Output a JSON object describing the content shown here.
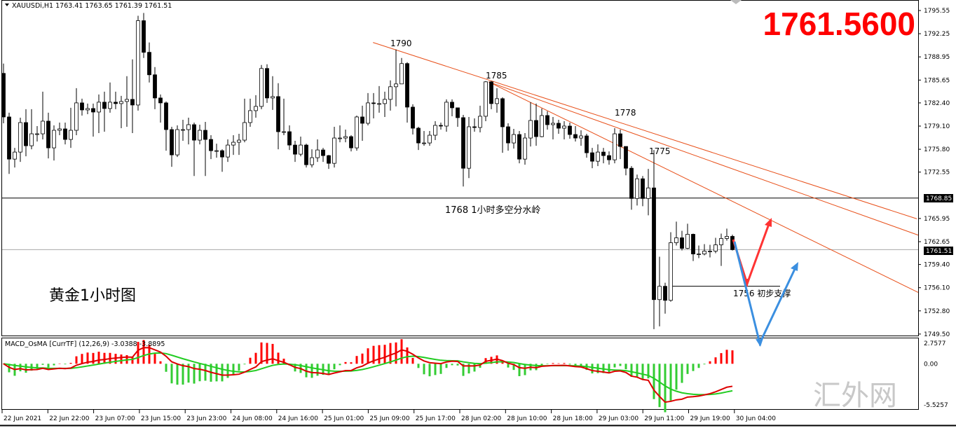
{
  "header": {
    "symbol_line": "XAUUSDi,H1  1763.41 1763.65 1761.39 1761.51",
    "menu_icon": "triangle-down-icon"
  },
  "big_price": "1761.5600",
  "chart_title": "黄金1小时图",
  "watermark": "汇外网",
  "colors": {
    "bull": "#ffffff",
    "bear": "#000000",
    "trendline": "#e8501a",
    "macd_pos": "#ff0000",
    "macd_neg": "#33cc33",
    "macd_line": "#dd0000",
    "signal_line": "#22cc22",
    "arrow_up": "#ff3333",
    "arrow_blue": "#3b8fe0",
    "big_price": "#ff0000"
  },
  "annotations": {
    "label_1790": "1790",
    "label_1785": "1785",
    "label_1778": "1778",
    "label_1775": "1775",
    "pivot_label": "1768  1小时多空分水岭",
    "support_label": "1756  初步支撑"
  },
  "price_tags": {
    "level": "1768.85",
    "last": "1761.51"
  },
  "macd": {
    "header": "MACD_OsMA [CurrTF] (12,26,9) -3.0388 -3.8895",
    "ticks": [
      "2.7577",
      "0.00",
      "-5.5257"
    ],
    "ylim": [
      -5.5257,
      2.7577
    ]
  },
  "chart_data": {
    "type": "candlestick",
    "symbol": "XAUUSDi",
    "timeframe": "H1",
    "ylim": [
      1749.5,
      1795.55
    ],
    "y_ticks": [
      "1795.55",
      "1792.25",
      "1788.95",
      "1785.65",
      "1782.40",
      "1779.10",
      "1775.80",
      "1772.55",
      "1765.95",
      "1762.65",
      "1759.40",
      "1756.10",
      "1752.80",
      "1749.50"
    ],
    "x_ticks": [
      "22 Jun 2021",
      "22 Jun 22:00",
      "23 Jun 07:00",
      "23 Jun 15:00",
      "23 Jun 23:00",
      "24 Jun 08:00",
      "24 Jun 16:00",
      "25 Jun 01:00",
      "25 Jun 09:00",
      "25 Jun 17:00",
      "28 Jun 02:00",
      "28 Jun 10:00",
      "28 Jun 18:00",
      "29 Jun 03:00",
      "29 Jun 11:00",
      "29 Jun 19:00",
      "30 Jun 04:00"
    ],
    "first_open": 1786.6,
    "close": [
      1780.4,
      1774.4,
      1775.4,
      1779.6,
      1776.3,
      1778.0,
      1778.0,
      1779.8,
      1776.0,
      1778.5,
      1778.7,
      1777.2,
      1778.5,
      1782.4,
      1781.4,
      1781.6,
      1781.1,
      1782.5,
      1781.6,
      1782.5,
      1782.3,
      1782.6,
      1782.9,
      1782.1,
      1794.1,
      1789.6,
      1786.4,
      1783.1,
      1782.4,
      1778.6,
      1775.0,
      1778.6,
      1778.6,
      1779.3,
      1777.1,
      1778.5,
      1777.2,
      1775.6,
      1775.6,
      1774.7,
      1776.4,
      1776.8,
      1777.1,
      1779.6,
      1781.3,
      1781.9,
      1787.3,
      1783.1,
      1783.3,
      1778.3,
      1778.3,
      1776.4,
      1775.1,
      1776.4,
      1773.6,
      1774.6,
      1775.7,
      1774.9,
      1773.8,
      1777.4,
      1777.4,
      1777.6,
      1776.0,
      1780.4,
      1779.5,
      1782.4,
      1782.3,
      1782.3,
      1782.9,
      1784.7,
      1785.1,
      1788.0,
      1781.8,
      1778.8,
      1776.7,
      1776.7,
      1777.8,
      1779.2,
      1779.1,
      1782.5,
      1781.7,
      1780.3,
      1773.1,
      1779.0,
      1778.9,
      1780.5,
      1785.4,
      1782.3,
      1783.0,
      1779.0,
      1776.7,
      1777.9,
      1774.4,
      1777.4,
      1779.9,
      1777.6,
      1780.6,
      1779.3,
      1779.5,
      1778.8,
      1779.1,
      1777.9,
      1777.4,
      1777.7,
      1775.3,
      1774.1,
      1775.4,
      1774.9,
      1774.3,
      1778.0,
      1776.2,
      1773.1,
      1768.8,
      1771.6,
      1768.8,
      1770.3,
      1754.4,
      1756.3,
      1754.3,
      1762.5,
      1763.2,
      1761.7,
      1763.7,
      1760.9,
      1760.9,
      1761.3,
      1761.3,
      1762.2,
      1763.1,
      1763.4,
      1761.51
    ],
    "high": [
      1788.0,
      1781.0,
      1776.0,
      1780.3,
      1781.5,
      1781.5,
      1779.1,
      1784.0,
      1781.0,
      1779.2,
      1779.6,
      1779.6,
      1781.7,
      1784.5,
      1783.0,
      1782.3,
      1782.3,
      1783.6,
      1784.0,
      1785.3,
      1784.0,
      1783.4,
      1786.2,
      1788.6,
      1794.8,
      1795.2,
      1791.0,
      1787.5,
      1783.6,
      1782.6,
      1779.0,
      1779.2,
      1780.0,
      1780.3,
      1779.6,
      1779.3,
      1779.7,
      1777.8,
      1776.6,
      1775.8,
      1777.2,
      1777.8,
      1778.0,
      1783.0,
      1783.0,
      1783.5,
      1787.8,
      1787.9,
      1786.2,
      1785.2,
      1783.0,
      1779.2,
      1777.0,
      1777.6,
      1776.6,
      1775.8,
      1777.2,
      1776.0,
      1775.0,
      1779.0,
      1779.2,
      1778.6,
      1777.8,
      1780.6,
      1782.0,
      1783.8,
      1783.8,
      1784.8,
      1784.0,
      1785.6,
      1790.0,
      1788.8,
      1788.2,
      1782.2,
      1779.0,
      1778.4,
      1778.4,
      1779.8,
      1779.6,
      1782.9,
      1782.9,
      1781.6,
      1780.7,
      1780.4,
      1780.2,
      1782.0,
      1785.5,
      1785.5,
      1784.5,
      1783.2,
      1779.5,
      1778.7,
      1778.4,
      1778.1,
      1782.5,
      1782.3,
      1781.6,
      1781.2,
      1780.4,
      1780.0,
      1779.8,
      1779.6,
      1779.1,
      1778.5,
      1778.0,
      1776.0,
      1776.5,
      1776.0,
      1775.5,
      1778.8,
      1778.6,
      1774.5,
      1773.4,
      1772.2,
      1772.0,
      1773.0,
      1775.7,
      1760.5,
      1756.8,
      1764.0,
      1765.5,
      1764.2,
      1765.2,
      1763.8,
      1762.1,
      1762.3,
      1762.2,
      1763.2,
      1763.8,
      1764.5,
      1763.65
    ],
    "low": [
      1779.5,
      1772.3,
      1773.2,
      1774.0,
      1774.8,
      1775.8,
      1776.9,
      1777.2,
      1774.5,
      1774.2,
      1777.8,
      1776.5,
      1776.0,
      1777.8,
      1780.6,
      1780.8,
      1777.6,
      1778.1,
      1778.3,
      1781.0,
      1781.5,
      1778.8,
      1779.0,
      1778.1,
      1781.3,
      1788.8,
      1785.3,
      1781.5,
      1779.6,
      1775.6,
      1773.3,
      1774.7,
      1777.0,
      1776.5,
      1772.0,
      1776.5,
      1772.0,
      1774.4,
      1774.6,
      1772.6,
      1774.0,
      1775.0,
      1775.0,
      1776.8,
      1779.0,
      1780.3,
      1781.5,
      1782.4,
      1781.4,
      1775.8,
      1777.8,
      1775.7,
      1774.0,
      1774.8,
      1773.2,
      1773.2,
      1774.0,
      1774.0,
      1773.0,
      1773.2,
      1776.8,
      1776.8,
      1775.5,
      1775.6,
      1777.0,
      1779.2,
      1780.2,
      1781.0,
      1780.4,
      1781.3,
      1781.9,
      1785.3,
      1779.6,
      1777.9,
      1775.7,
      1776.3,
      1776.3,
      1777.1,
      1778.6,
      1778.3,
      1780.5,
      1779.0,
      1770.5,
      1771.7,
      1778.3,
      1778.2,
      1779.8,
      1781.5,
      1781.0,
      1775.3,
      1775.6,
      1775.9,
      1773.8,
      1773.6,
      1776.2,
      1776.3,
      1777.5,
      1778.6,
      1777.2,
      1778.0,
      1777.2,
      1777.3,
      1776.9,
      1776.3,
      1774.6,
      1773.1,
      1773.4,
      1773.8,
      1773.6,
      1773.8,
      1774.4,
      1772.1,
      1767.2,
      1767.8,
      1767.7,
      1766.4,
      1750.2,
      1750.6,
      1752.4,
      1754.1,
      1762.1,
      1761.4,
      1761.6,
      1759.9,
      1760.3,
      1760.7,
      1760.4,
      1761.0,
      1759.2,
      1762.8,
      1761.39
    ],
    "horizontal_levels": [
      1768.85,
      1761.51
    ],
    "support_level": 1756.3,
    "trendlines": [
      {
        "from": [
          65.9,
          1791.0
        ],
        "to": [
          162.9,
          1765.9
        ]
      },
      {
        "from": [
          86.5,
          1785.4
        ],
        "to": [
          170.1,
          1761.6
        ]
      },
      {
        "from": [
          86.5,
          1785.4
        ],
        "to": [
          170.1,
          1752.7
        ]
      }
    ]
  }
}
